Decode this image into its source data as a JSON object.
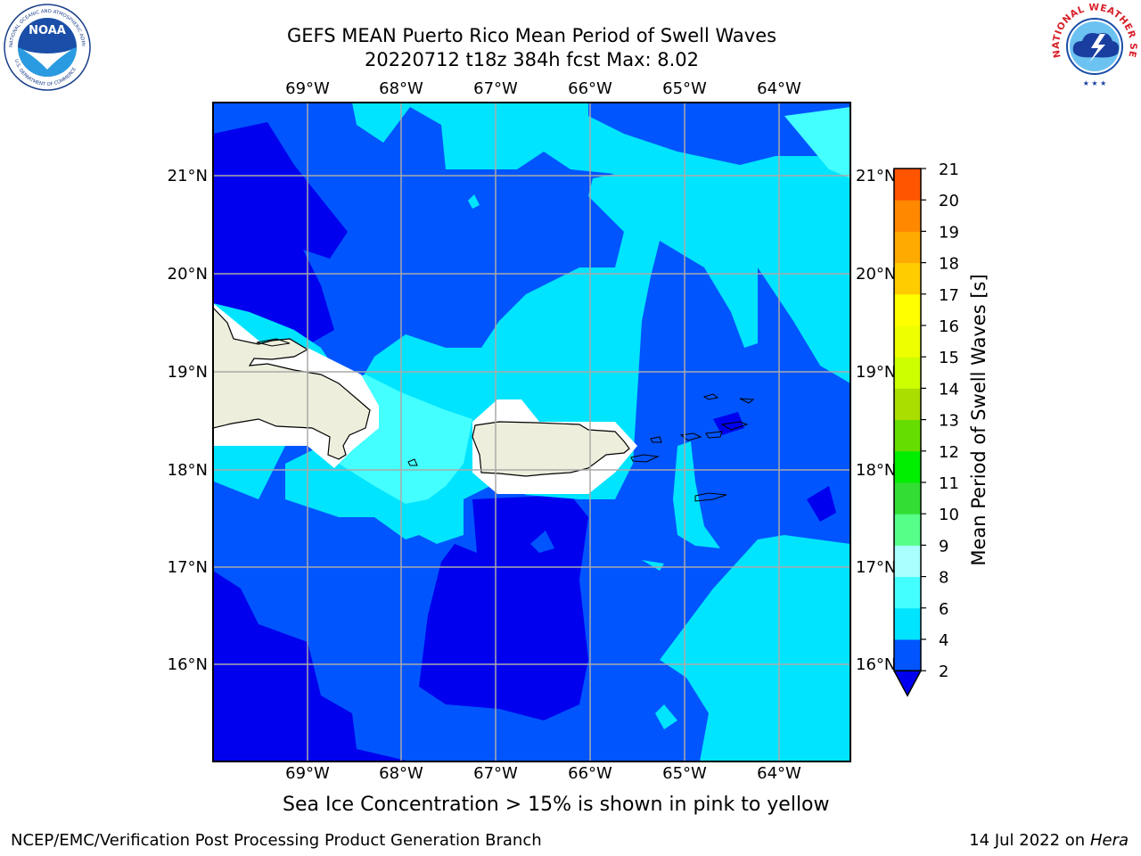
{
  "title": {
    "line1": "GEFS MEAN Puerto Rico Mean Period of Swell Waves",
    "line2": "20220712 t18z 384h fcst   Max: 8.02"
  },
  "map": {
    "lon_labels": [
      "69°W",
      "68°W",
      "67°W",
      "66°W",
      "65°W",
      "64°W"
    ],
    "lat_labels": [
      "21°N",
      "20°N",
      "19°N",
      "18°N",
      "17°N",
      "16°N"
    ],
    "colorbar": {
      "label": "Mean Period of Swell Waves [s]",
      "ticks": [
        "2",
        "4",
        "6",
        "8",
        "9",
        "10",
        "11",
        "12",
        "13",
        "14",
        "15",
        "16",
        "17",
        "18",
        "19",
        "20",
        "21"
      ],
      "colors": [
        "#0055ff",
        "#00e4ff",
        "#44ffff",
        "#aaffff",
        "#55ff88",
        "#33dd33",
        "#00ee00",
        "#66dd00",
        "#aadd00",
        "#ccff00",
        "#eeff00",
        "#ffff00",
        "#ffcc00",
        "#ffaa00",
        "#ff8800",
        "#ff5500",
        "#ff2200",
        "#ff0000"
      ],
      "under_color": "#0000ee"
    },
    "field_colors": {
      "lt2": "#0000ee",
      "2to4": "#0055ff",
      "4to6": "#00e4ff",
      "6to8": "#44ffff",
      "land": "#eeeedd"
    }
  },
  "note": "Sea Ice Concentration > 15% is shown in pink to yellow",
  "footer": {
    "left": "NCEP/EMC/Verification Post Processing Product Generation Branch",
    "right_prefix": "14 Jul 2022 on ",
    "right_host": "Hera"
  },
  "logos": {
    "noaa_text": "NOAA",
    "noaa_ring_top": "NATIONAL OCEANIC AND ATMOSPHERIC ADMINISTRATION",
    "noaa_ring_bottom": "U.S. DEPARTMENT OF COMMERCE",
    "nws_ring": "NATIONAL WEATHER SERVICE"
  }
}
